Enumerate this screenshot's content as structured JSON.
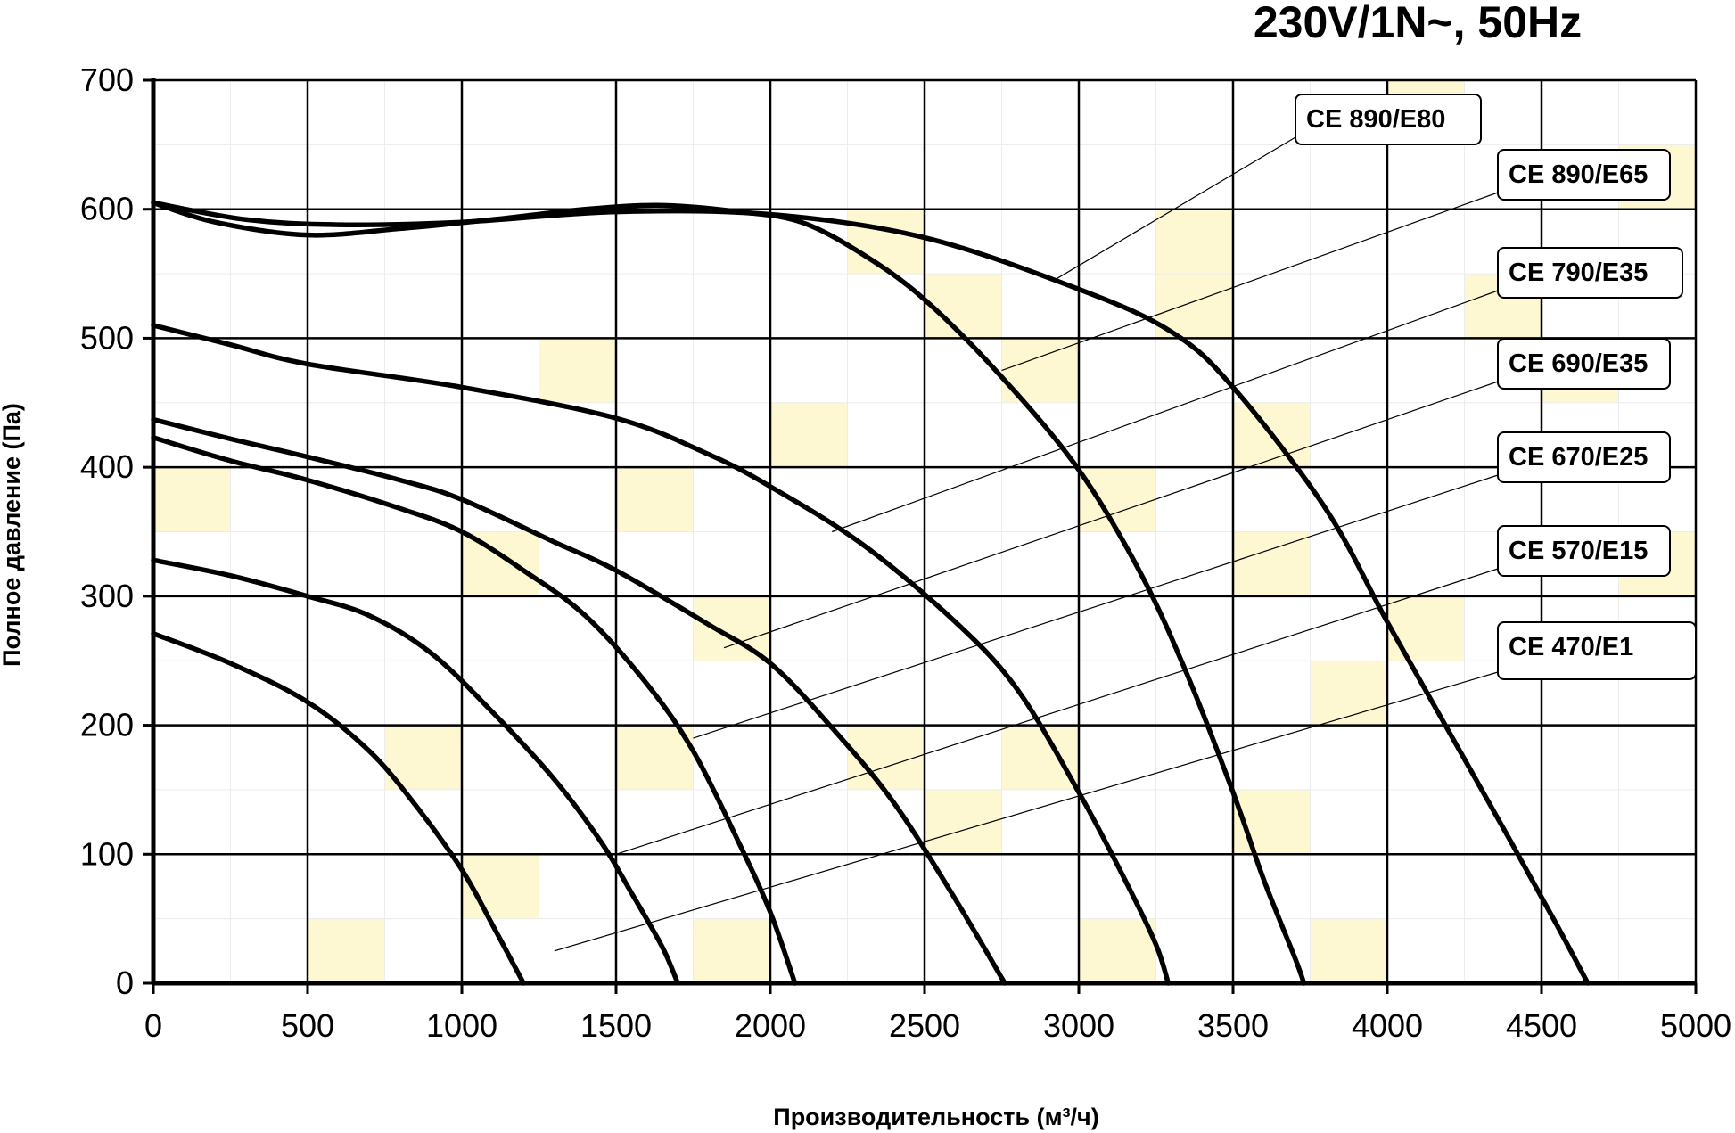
{
  "chart_data": {
    "type": "line",
    "title": "230V/1N~, 50Hz",
    "xlabel": "Производительность (м³/ч)",
    "ylabel": "Полное давление (Па)",
    "xlim": [
      0,
      5000
    ],
    "ylim": [
      0,
      700
    ],
    "x_ticks": [
      0,
      500,
      1000,
      1500,
      2000,
      2500,
      3000,
      3500,
      4000,
      4500,
      5000
    ],
    "y_ticks": [
      0,
      100,
      200,
      300,
      400,
      500,
      600,
      700
    ],
    "x_tick_labels": [
      "0",
      "500",
      "1000",
      "1500",
      "2000",
      "2500",
      "3000",
      "3500",
      "4000",
      "4500",
      "5000"
    ],
    "y_tick_labels": [
      "0",
      "100",
      "200",
      "300",
      "400",
      "500",
      "600",
      "700"
    ],
    "grid": true,
    "legend": "callout labels on right",
    "series": [
      {
        "name": "CE 890/E80",
        "points": [
          [
            0,
            605
          ],
          [
            300,
            592
          ],
          [
            600,
            588
          ],
          [
            1000,
            590
          ],
          [
            1500,
            598
          ],
          [
            2000,
            596
          ],
          [
            2500,
            578
          ],
          [
            3000,
            538
          ],
          [
            3300,
            505
          ],
          [
            3500,
            462
          ],
          [
            3800,
            368
          ],
          [
            4000,
            280
          ],
          [
            4200,
            195
          ],
          [
            4400,
            110
          ],
          [
            4550,
            45
          ],
          [
            4650,
            0
          ]
        ]
      },
      {
        "name": "CE 890/E65",
        "points": [
          [
            0,
            605
          ],
          [
            200,
            590
          ],
          [
            500,
            580
          ],
          [
            800,
            585
          ],
          [
            1100,
            592
          ],
          [
            1400,
            600
          ],
          [
            1650,
            603
          ],
          [
            1900,
            598
          ],
          [
            2100,
            590
          ],
          [
            2300,
            565
          ],
          [
            2500,
            530
          ],
          [
            2750,
            470
          ],
          [
            3000,
            398
          ],
          [
            3200,
            318
          ],
          [
            3350,
            240
          ],
          [
            3500,
            148
          ],
          [
            3600,
            80
          ],
          [
            3700,
            20
          ],
          [
            3730,
            0
          ]
        ]
      },
      {
        "name": "CE 790/E35",
        "points": [
          [
            0,
            510
          ],
          [
            250,
            495
          ],
          [
            500,
            480
          ],
          [
            1000,
            462
          ],
          [
            1500,
            438
          ],
          [
            1800,
            410
          ],
          [
            2000,
            385
          ],
          [
            2300,
            340
          ],
          [
            2600,
            280
          ],
          [
            2800,
            228
          ],
          [
            3000,
            148
          ],
          [
            3150,
            80
          ],
          [
            3250,
            30
          ],
          [
            3290,
            0
          ]
        ]
      },
      {
        "name": "CE 690/E35",
        "points": [
          [
            0,
            437
          ],
          [
            250,
            422
          ],
          [
            500,
            408
          ],
          [
            800,
            390
          ],
          [
            1000,
            375
          ],
          [
            1300,
            342
          ],
          [
            1500,
            320
          ],
          [
            1800,
            278
          ],
          [
            2000,
            248
          ],
          [
            2200,
            198
          ],
          [
            2400,
            140
          ],
          [
            2600,
            65
          ],
          [
            2760,
            0
          ]
        ]
      },
      {
        "name": "CE 670/E25",
        "points": [
          [
            0,
            423
          ],
          [
            250,
            405
          ],
          [
            500,
            390
          ],
          [
            800,
            368
          ],
          [
            1000,
            350
          ],
          [
            1200,
            320
          ],
          [
            1400,
            285
          ],
          [
            1600,
            232
          ],
          [
            1750,
            180
          ],
          [
            1900,
            108
          ],
          [
            2000,
            55
          ],
          [
            2080,
            0
          ]
        ]
      },
      {
        "name": "CE 570/E15",
        "points": [
          [
            0,
            328
          ],
          [
            250,
            316
          ],
          [
            500,
            300
          ],
          [
            700,
            285
          ],
          [
            900,
            256
          ],
          [
            1100,
            210
          ],
          [
            1300,
            158
          ],
          [
            1450,
            110
          ],
          [
            1550,
            70
          ],
          [
            1650,
            28
          ],
          [
            1700,
            0
          ]
        ]
      },
      {
        "name": "CE 470/E1",
        "points": [
          [
            0,
            271
          ],
          [
            250,
            248
          ],
          [
            500,
            218
          ],
          [
            700,
            180
          ],
          [
            850,
            138
          ],
          [
            1000,
            88
          ],
          [
            1100,
            45
          ],
          [
            1200,
            0
          ]
        ]
      }
    ]
  },
  "labels": [
    {
      "text": "CE 890/E80"
    },
    {
      "text": "CE 890/E65"
    },
    {
      "text": "CE 790/E35"
    },
    {
      "text": "CE 690/E35"
    },
    {
      "text": "CE 670/E25"
    },
    {
      "text": "CE 570/E15"
    },
    {
      "text": "CE 470/E1"
    }
  ]
}
